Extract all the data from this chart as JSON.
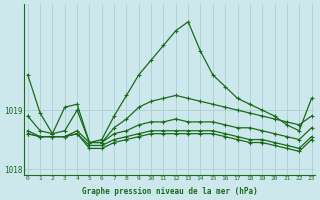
{
  "x": [
    0,
    1,
    2,
    3,
    4,
    5,
    6,
    7,
    8,
    9,
    10,
    11,
    12,
    13,
    14,
    15,
    16,
    17,
    18,
    19,
    20,
    21,
    22,
    23
  ],
  "line_peak": [
    1019.6,
    1018.95,
    1018.6,
    1019.05,
    1019.1,
    1018.45,
    1018.5,
    1018.9,
    1019.25,
    1019.6,
    1019.85,
    1020.1,
    1020.35,
    1020.5,
    1020.0,
    1019.6,
    1019.4,
    1019.2,
    1019.1,
    1019.0,
    1018.9,
    1018.75,
    1018.65,
    1019.2
  ],
  "line_mid1": [
    1018.9,
    1018.65,
    1018.6,
    1018.65,
    1019.0,
    1018.45,
    1018.45,
    1018.7,
    1018.85,
    1019.05,
    1019.15,
    1019.2,
    1019.25,
    1019.2,
    1019.15,
    1019.1,
    1019.05,
    1019.0,
    1018.95,
    1018.9,
    1018.85,
    1018.8,
    1018.75,
    1018.9
  ],
  "line_mid2": [
    1018.65,
    1018.55,
    1018.55,
    1018.55,
    1018.65,
    1018.45,
    1018.45,
    1018.6,
    1018.65,
    1018.75,
    1018.8,
    1018.8,
    1018.85,
    1018.8,
    1018.8,
    1018.8,
    1018.75,
    1018.7,
    1018.7,
    1018.65,
    1018.6,
    1018.55,
    1018.5,
    1018.7
  ],
  "line_low1": [
    1018.6,
    1018.55,
    1018.55,
    1018.55,
    1018.6,
    1018.4,
    1018.4,
    1018.5,
    1018.55,
    1018.6,
    1018.65,
    1018.65,
    1018.65,
    1018.65,
    1018.65,
    1018.65,
    1018.6,
    1018.55,
    1018.5,
    1018.5,
    1018.45,
    1018.4,
    1018.35,
    1018.55
  ],
  "line_low2": [
    1018.6,
    1018.55,
    1018.55,
    1018.55,
    1018.6,
    1018.35,
    1018.35,
    1018.45,
    1018.5,
    1018.55,
    1018.6,
    1018.6,
    1018.6,
    1018.6,
    1018.6,
    1018.6,
    1018.55,
    1018.5,
    1018.45,
    1018.45,
    1018.4,
    1018.35,
    1018.3,
    1018.5
  ],
  "bg_color": "#cce8ec",
  "line_color": "#1a6b1a",
  "grid_color": "#aacfd4",
  "yticks": [
    1018,
    1019
  ],
  "xticks": [
    0,
    1,
    2,
    3,
    4,
    5,
    6,
    7,
    8,
    9,
    10,
    11,
    12,
    13,
    14,
    15,
    16,
    17,
    18,
    19,
    20,
    21,
    22,
    23
  ],
  "xlabel": "Graphe pression niveau de la mer (hPa)",
  "ylim": [
    1017.9,
    1020.8
  ],
  "xlim": [
    -0.3,
    23.3
  ],
  "title_color": "#1a6b1a",
  "marker": "+"
}
